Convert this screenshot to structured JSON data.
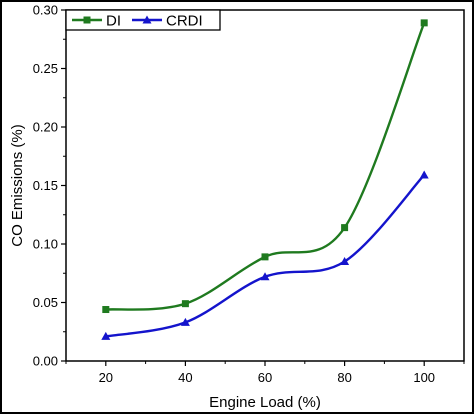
{
  "chart_data": {
    "type": "line",
    "title": "",
    "xlabel": "Engine Load (%)",
    "ylabel": "CO Emissions (%)",
    "x": [
      20,
      40,
      60,
      80,
      100
    ],
    "xticks": [
      "20",
      "40",
      "60",
      "80",
      "100"
    ],
    "yticks": [
      "0.00",
      "0.05",
      "0.10",
      "0.15",
      "0.20",
      "0.25",
      "0.30"
    ],
    "xlim": [
      10,
      110
    ],
    "ylim": [
      0.0,
      0.3
    ],
    "grid": false,
    "legend_position": "top-left",
    "series": [
      {
        "name": "DI",
        "color": "#1f7a1f",
        "marker": "square",
        "values": [
          0.044,
          0.049,
          0.089,
          0.114,
          0.289
        ]
      },
      {
        "name": "CRDI",
        "color": "#1414cc",
        "marker": "triangle",
        "values": [
          0.021,
          0.033,
          0.072,
          0.085,
          0.159
        ]
      }
    ]
  }
}
